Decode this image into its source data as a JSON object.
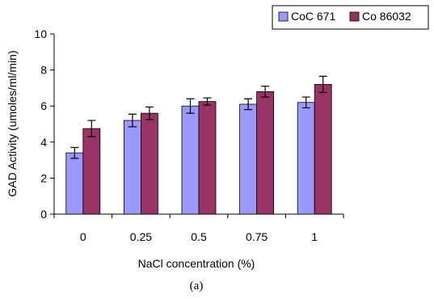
{
  "chart_data": {
    "type": "bar",
    "xlabel": "NaCl concentration (%)",
    "ylabel": "GAD Activity (umoles/ml/min)",
    "caption": "(a)",
    "categories": [
      "0",
      "0.25",
      "0.5",
      "0.75",
      "1"
    ],
    "ylim": [
      0,
      10
    ],
    "yticks": [
      0,
      2,
      4,
      6,
      8,
      10
    ],
    "grid": false,
    "legend_position": "top-right",
    "series": [
      {
        "name": "CoC 671",
        "color": "#9999ff",
        "values": [
          3.4,
          5.2,
          6.0,
          6.1,
          6.2
        ],
        "errors": [
          0.3,
          0.35,
          0.4,
          0.3,
          0.3
        ]
      },
      {
        "name": "Co 86032",
        "color": "#993366",
        "values": [
          4.75,
          5.6,
          6.25,
          6.8,
          7.2
        ],
        "errors": [
          0.45,
          0.35,
          0.2,
          0.3,
          0.45
        ]
      }
    ]
  }
}
